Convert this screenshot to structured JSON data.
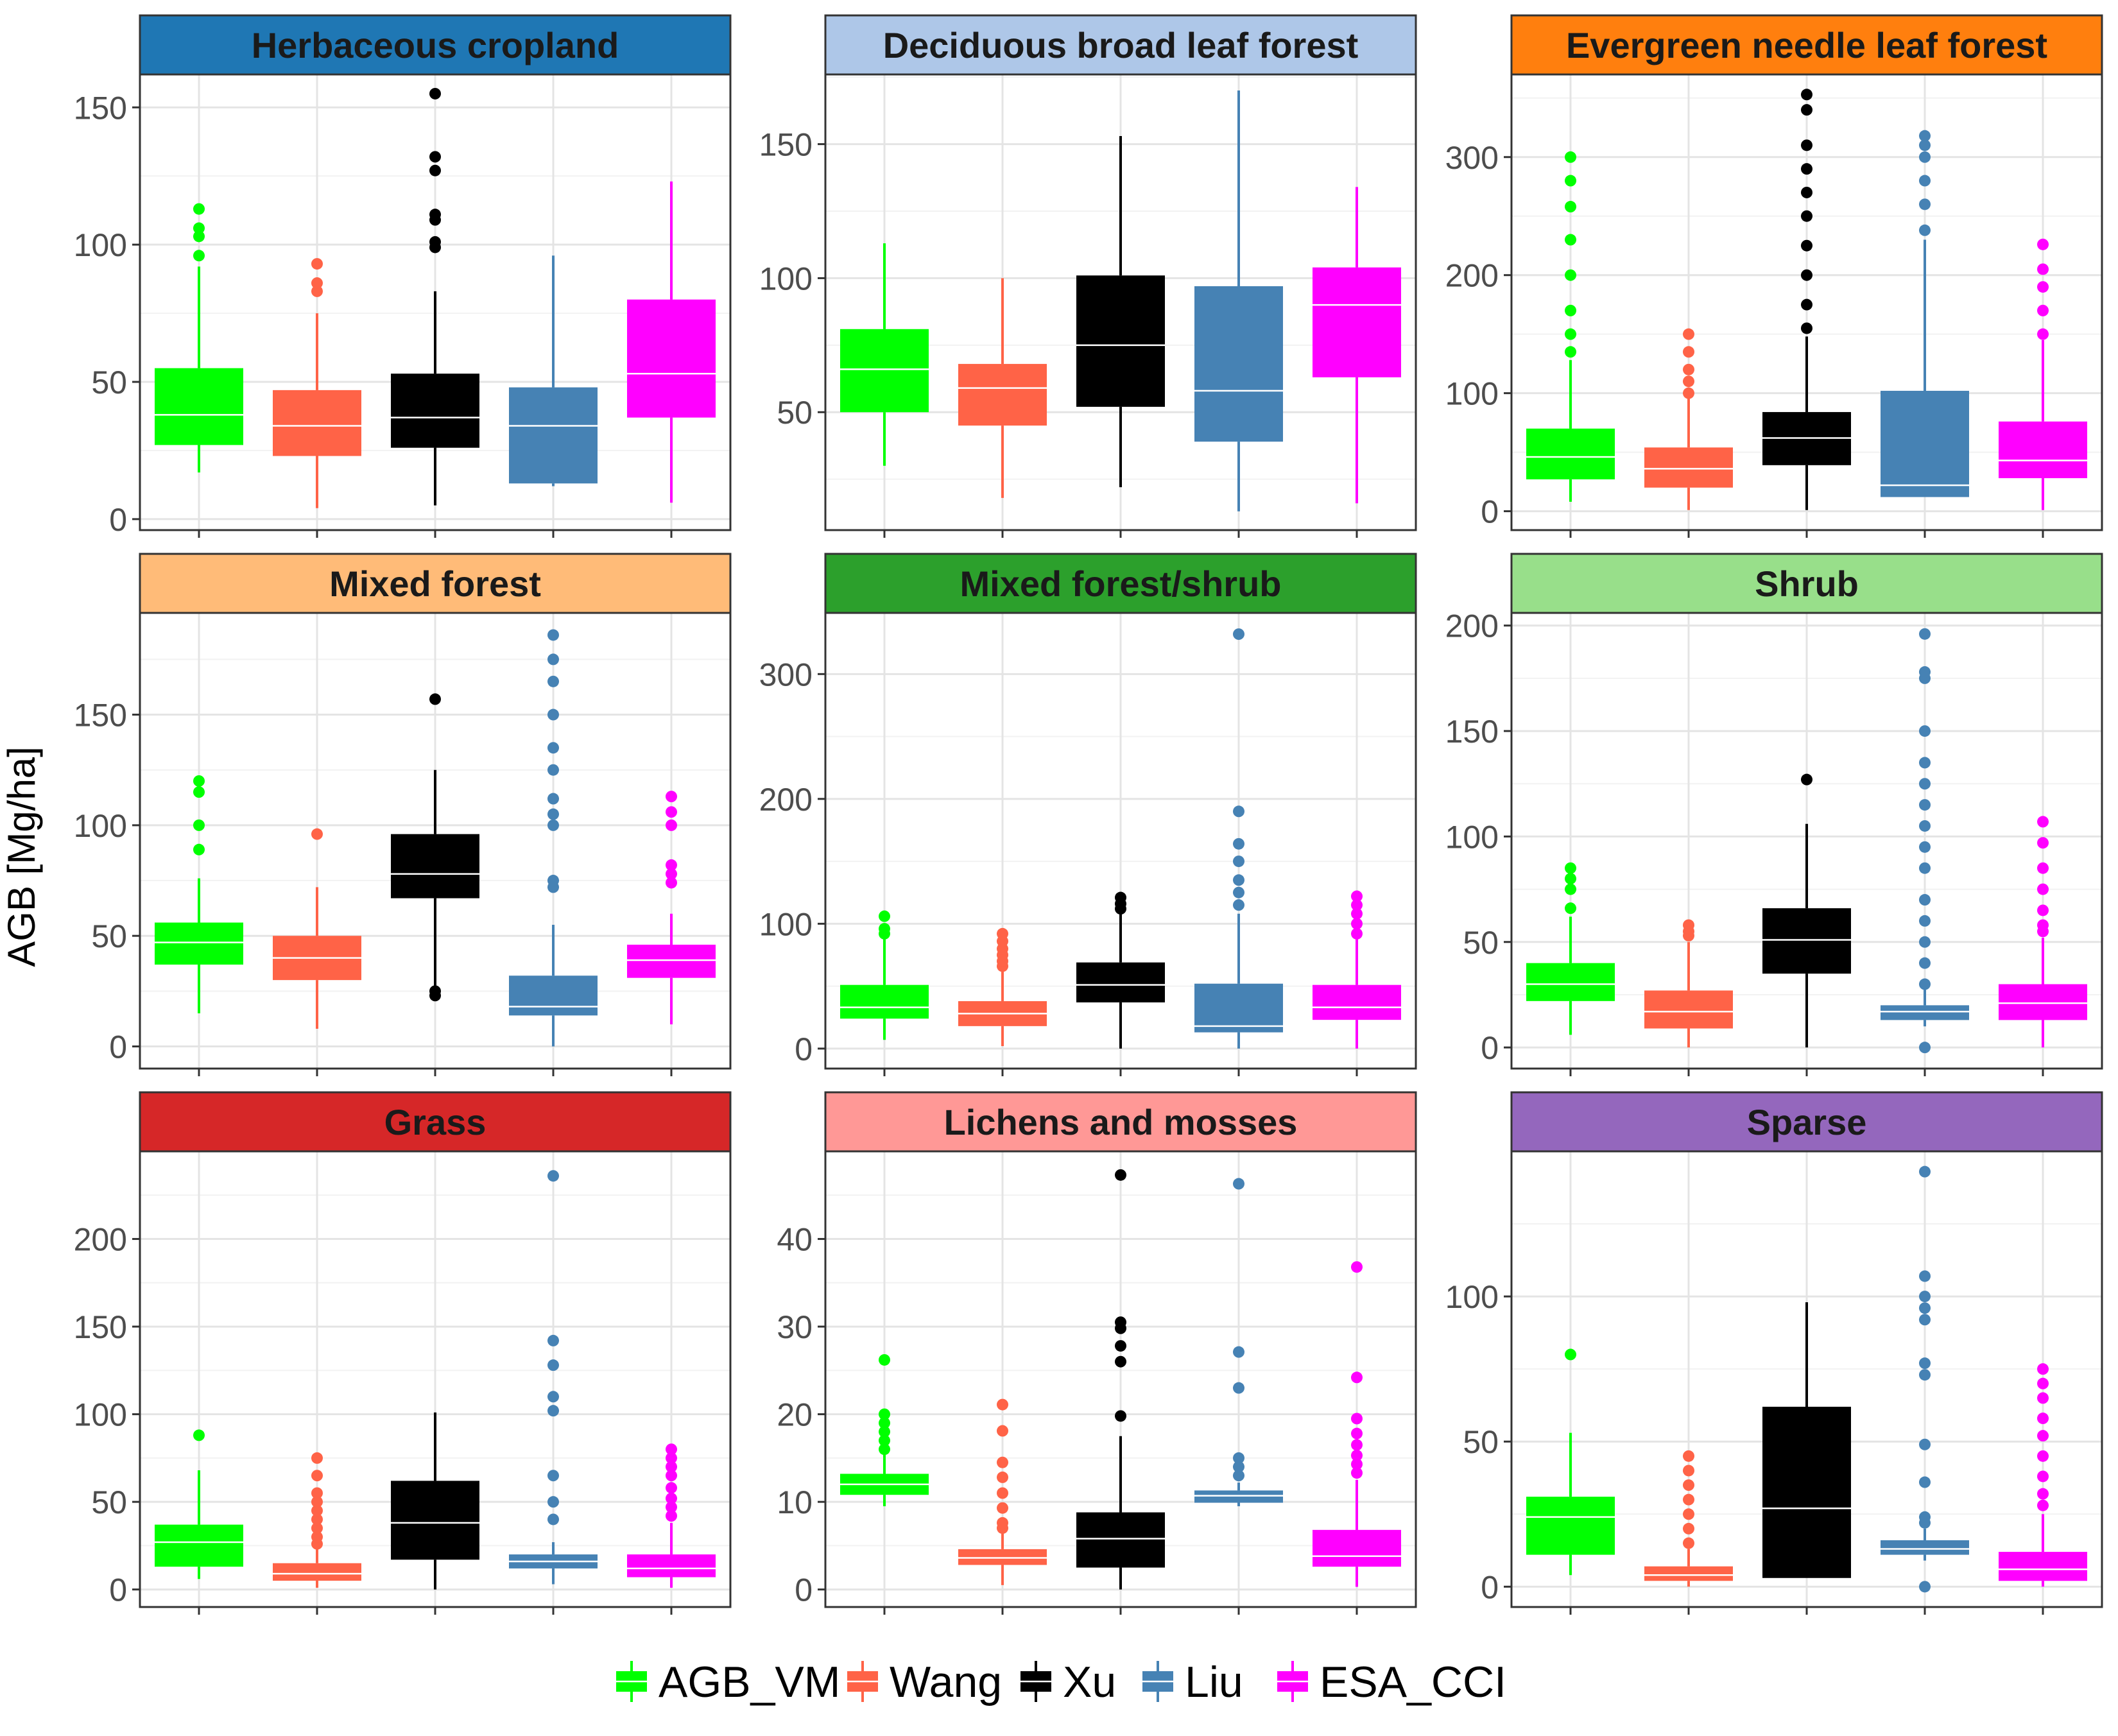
{
  "figure": {
    "ylabel": "AGB [Mg/ha]"
  },
  "legend": {
    "items": [
      {
        "label": "AGB_VM",
        "color": "#00ff00"
      },
      {
        "label": "Wang",
        "color": "#ff6347"
      },
      {
        "label": "Xu",
        "color": "#000000"
      },
      {
        "label": "Liu",
        "color": "#4682b4"
      },
      {
        "label": "ESA_CCI",
        "color": "#ff00ff"
      }
    ]
  },
  "chart_data": [
    {
      "type": "boxplot",
      "title": "Herbaceous cropland",
      "strip_color": "#1f77b4",
      "ylim": [
        -4,
        162
      ],
      "yticks": [
        0,
        50,
        100,
        150
      ],
      "series": [
        {
          "name": "AGB_VM",
          "whisker_low": 17,
          "q1": 27,
          "median": 38,
          "q3": 55,
          "whisker_high": 92,
          "outliers": [
            96,
            103,
            106,
            113
          ]
        },
        {
          "name": "Wang",
          "whisker_low": 4,
          "q1": 23,
          "median": 34,
          "q3": 47,
          "whisker_high": 75,
          "outliers": [
            83,
            86,
            93
          ]
        },
        {
          "name": "Xu",
          "whisker_low": 5,
          "q1": 26,
          "median": 37,
          "q3": 53,
          "whisker_high": 83,
          "outliers": [
            99,
            101,
            109,
            111,
            127,
            132,
            155
          ]
        },
        {
          "name": "Liu",
          "whisker_low": 12,
          "q1": 13,
          "median": 34,
          "q3": 48,
          "whisker_high": 96,
          "outliers": []
        },
        {
          "name": "ESA_CCI",
          "whisker_low": 6,
          "q1": 37,
          "median": 53,
          "q3": 80,
          "whisker_high": 123,
          "outliers": []
        }
      ]
    },
    {
      "type": "boxplot",
      "title": "Deciduous broad leaf forest",
      "strip_color": "#aec7e8",
      "ylim": [
        6,
        176
      ],
      "yticks": [
        50,
        100,
        150
      ],
      "series": [
        {
          "name": "AGB_VM",
          "whisker_low": 30,
          "q1": 50,
          "median": 66,
          "q3": 81,
          "whisker_high": 113,
          "outliers": []
        },
        {
          "name": "Wang",
          "whisker_low": 18,
          "q1": 45,
          "median": 59,
          "q3": 68,
          "whisker_high": 100,
          "outliers": []
        },
        {
          "name": "Xu",
          "whisker_low": 22,
          "q1": 52,
          "median": 75,
          "q3": 101,
          "whisker_high": 153,
          "outliers": []
        },
        {
          "name": "Liu",
          "whisker_low": 13,
          "q1": 39,
          "median": 58,
          "q3": 97,
          "whisker_high": 170,
          "outliers": []
        },
        {
          "name": "ESA_CCI",
          "whisker_low": 16,
          "q1": 63,
          "median": 90,
          "q3": 104,
          "whisker_high": 134,
          "outliers": []
        }
      ]
    },
    {
      "type": "boxplot",
      "title": "Evergreen needle leaf forest",
      "strip_color": "#ff7f0e",
      "ylim": [
        -16,
        370
      ],
      "yticks": [
        0,
        100,
        200,
        300
      ],
      "series": [
        {
          "name": "AGB_VM",
          "whisker_low": 8,
          "q1": 27,
          "median": 46,
          "q3": 70,
          "whisker_high": 128,
          "outliers": [
            135,
            150,
            170,
            200,
            230,
            258,
            280,
            300
          ]
        },
        {
          "name": "Wang",
          "whisker_low": 1,
          "q1": 20,
          "median": 36,
          "q3": 54,
          "whisker_high": 98,
          "outliers": [
            100,
            110,
            120,
            135,
            150
          ]
        },
        {
          "name": "Xu",
          "whisker_low": 1,
          "q1": 39,
          "median": 62,
          "q3": 84,
          "whisker_high": 148,
          "outliers": [
            155,
            175,
            200,
            225,
            250,
            270,
            290,
            310,
            340,
            353
          ]
        },
        {
          "name": "Liu",
          "whisker_low": 12,
          "q1": 12,
          "median": 22,
          "q3": 102,
          "whisker_high": 230,
          "outliers": [
            238,
            260,
            280,
            300,
            310,
            318
          ]
        },
        {
          "name": "ESA_CCI",
          "whisker_low": 1,
          "q1": 28,
          "median": 43,
          "q3": 76,
          "whisker_high": 145,
          "outliers": [
            150,
            170,
            190,
            205,
            226
          ]
        }
      ]
    },
    {
      "type": "boxplot",
      "title": "Mixed forest",
      "strip_color": "#ffbb78",
      "ylim": [
        -10,
        196
      ],
      "yticks": [
        0,
        50,
        100,
        150
      ],
      "series": [
        {
          "name": "AGB_VM",
          "whisker_low": 15,
          "q1": 37,
          "median": 47,
          "q3": 56,
          "whisker_high": 76,
          "outliers": [
            89,
            100,
            115,
            120
          ]
        },
        {
          "name": "Wang",
          "whisker_low": 8,
          "q1": 30,
          "median": 40,
          "q3": 50,
          "whisker_high": 72,
          "outliers": [
            96
          ]
        },
        {
          "name": "Xu",
          "whisker_low": 26,
          "q1": 67,
          "median": 78,
          "q3": 96,
          "whisker_high": 125,
          "outliers": [
            23,
            25,
            157
          ]
        },
        {
          "name": "Liu",
          "whisker_low": 0,
          "q1": 14,
          "median": 18,
          "q3": 32,
          "whisker_high": 55,
          "outliers": [
            72,
            75,
            100,
            105,
            112,
            125,
            135,
            150,
            165,
            175,
            186
          ]
        },
        {
          "name": "ESA_CCI",
          "whisker_low": 10,
          "q1": 31,
          "median": 39,
          "q3": 46,
          "whisker_high": 60,
          "outliers": [
            74,
            78,
            82,
            100,
            106,
            113
          ]
        }
      ]
    },
    {
      "type": "boxplot",
      "title": "Mixed forest/shrub",
      "strip_color": "#2ca02c",
      "ylim": [
        -16,
        349
      ],
      "yticks": [
        0,
        100,
        200,
        300
      ],
      "series": [
        {
          "name": "AGB_VM",
          "whisker_low": 7,
          "q1": 24,
          "median": 33,
          "q3": 51,
          "whisker_high": 88,
          "outliers": [
            92,
            96,
            106
          ]
        },
        {
          "name": "Wang",
          "whisker_low": 2,
          "q1": 18,
          "median": 28,
          "q3": 38,
          "whisker_high": 63,
          "outliers": [
            66,
            70,
            75,
            80,
            86,
            92
          ]
        },
        {
          "name": "Xu",
          "whisker_low": 0,
          "q1": 37,
          "median": 51,
          "q3": 69,
          "whisker_high": 108,
          "outliers": [
            112,
            116,
            121
          ]
        },
        {
          "name": "Liu",
          "whisker_low": 0,
          "q1": 13,
          "median": 18,
          "q3": 52,
          "whisker_high": 108,
          "outliers": [
            115,
            125,
            135,
            150,
            164,
            190,
            332
          ]
        },
        {
          "name": "ESA_CCI",
          "whisker_low": 0,
          "q1": 23,
          "median": 33,
          "q3": 51,
          "whisker_high": 88,
          "outliers": [
            92,
            100,
            108,
            115,
            122
          ]
        }
      ]
    },
    {
      "type": "boxplot",
      "title": "Shrub",
      "strip_color": "#98df8a",
      "ylim": [
        -10,
        206
      ],
      "yticks": [
        0,
        50,
        100,
        150,
        200
      ],
      "series": [
        {
          "name": "AGB_VM",
          "whisker_low": 6,
          "q1": 22,
          "median": 30,
          "q3": 40,
          "whisker_high": 62,
          "outliers": [
            66,
            75,
            80,
            85
          ]
        },
        {
          "name": "Wang",
          "whisker_low": 0,
          "q1": 9,
          "median": 17,
          "q3": 27,
          "whisker_high": 50,
          "outliers": [
            53,
            55,
            58
          ]
        },
        {
          "name": "Xu",
          "whisker_low": 0,
          "q1": 35,
          "median": 51,
          "q3": 66,
          "whisker_high": 106,
          "outliers": [
            127
          ]
        },
        {
          "name": "Liu",
          "whisker_low": 10,
          "q1": 13,
          "median": 17,
          "q3": 20,
          "whisker_high": 28,
          "outliers": [
            0,
            30,
            40,
            50,
            60,
            70,
            85,
            95,
            105,
            115,
            125,
            135,
            150,
            175,
            178,
            196
          ]
        },
        {
          "name": "ESA_CCI",
          "whisker_low": 0,
          "q1": 13,
          "median": 21,
          "q3": 30,
          "whisker_high": 52,
          "outliers": [
            55,
            58,
            65,
            75,
            85,
            97,
            107
          ]
        }
      ]
    },
    {
      "type": "boxplot",
      "title": "Grass",
      "strip_color": "#d62728",
      "ylim": [
        -10,
        250
      ],
      "yticks": [
        0,
        50,
        100,
        150,
        200
      ],
      "series": [
        {
          "name": "AGB_VM",
          "whisker_low": 6,
          "q1": 13,
          "median": 27,
          "q3": 37,
          "whisker_high": 68,
          "outliers": [
            88
          ]
        },
        {
          "name": "Wang",
          "whisker_low": 1,
          "q1": 5,
          "median": 9,
          "q3": 15,
          "whisker_high": 24,
          "outliers": [
            26,
            30,
            35,
            40,
            45,
            50,
            55,
            65,
            75
          ]
        },
        {
          "name": "Xu",
          "whisker_low": 0,
          "q1": 17,
          "median": 38,
          "q3": 62,
          "whisker_high": 101,
          "outliers": []
        },
        {
          "name": "Liu",
          "whisker_low": 3,
          "q1": 12,
          "median": 16,
          "q3": 20,
          "whisker_high": 27,
          "outliers": [
            40,
            50,
            65,
            102,
            110,
            128,
            142,
            236
          ]
        },
        {
          "name": "ESA_CCI",
          "whisker_low": 1,
          "q1": 7,
          "median": 12,
          "q3": 20,
          "whisker_high": 38,
          "outliers": [
            42,
            47,
            52,
            58,
            65,
            70,
            75,
            80
          ]
        }
      ]
    },
    {
      "type": "boxplot",
      "title": "Lichens and mosses",
      "strip_color": "#ff9896",
      "ylim": [
        -2,
        50
      ],
      "yticks": [
        0,
        10,
        20,
        30,
        40
      ],
      "series": [
        {
          "name": "AGB_VM",
          "whisker_low": 9.5,
          "q1": 10.8,
          "median": 12,
          "q3": 13.2,
          "whisker_high": 15.5,
          "outliers": [
            16,
            17,
            18,
            19,
            20,
            26.2
          ]
        },
        {
          "name": "Wang",
          "whisker_low": 0.5,
          "q1": 2.8,
          "median": 3.6,
          "q3": 4.6,
          "whisker_high": 6.5,
          "outliers": [
            7,
            7.6,
            9.3,
            11,
            12.8,
            14.5,
            18.1,
            21.1
          ]
        },
        {
          "name": "Xu",
          "whisker_low": 0,
          "q1": 2.5,
          "median": 5.8,
          "q3": 8.8,
          "whisker_high": 17.5,
          "outliers": [
            19.8,
            26,
            27.8,
            29.8,
            30.5,
            47.3
          ]
        },
        {
          "name": "Liu",
          "whisker_low": 9.5,
          "q1": 9.9,
          "median": 10.7,
          "q3": 11.3,
          "whisker_high": 12.2,
          "outliers": [
            13,
            14,
            15,
            23,
            27.1,
            46.3
          ]
        },
        {
          "name": "ESA_CCI",
          "whisker_low": 0.3,
          "q1": 2.6,
          "median": 3.8,
          "q3": 6.8,
          "whisker_high": 12.5,
          "outliers": [
            13.3,
            14.3,
            15.3,
            16.5,
            17.8,
            19.5,
            24.2,
            36.8
          ]
        }
      ]
    },
    {
      "type": "boxplot",
      "title": "Sparse",
      "strip_color": "#9467bd",
      "ylim": [
        -7,
        150
      ],
      "yticks": [
        0,
        50,
        100
      ],
      "series": [
        {
          "name": "AGB_VM",
          "whisker_low": 4,
          "q1": 11,
          "median": 24,
          "q3": 31,
          "whisker_high": 53,
          "outliers": [
            80
          ]
        },
        {
          "name": "Wang",
          "whisker_low": 0,
          "q1": 2,
          "median": 4,
          "q3": 7,
          "whisker_high": 13,
          "outliers": [
            15,
            20,
            25,
            30,
            35,
            40,
            45
          ]
        },
        {
          "name": "Xu",
          "whisker_low": 3,
          "q1": 3,
          "median": 27,
          "q3": 62,
          "whisker_high": 98,
          "outliers": []
        },
        {
          "name": "Liu",
          "whisker_low": 9,
          "q1": 11,
          "median": 13,
          "q3": 16,
          "whisker_high": 20,
          "outliers": [
            0,
            22,
            24,
            36,
            49,
            73,
            77,
            92,
            96,
            100,
            107,
            143
          ]
        },
        {
          "name": "ESA_CCI",
          "whisker_low": 0,
          "q1": 2,
          "median": 6,
          "q3": 12,
          "whisker_high": 25,
          "outliers": [
            28,
            32,
            38,
            45,
            52,
            58,
            65,
            70,
            75
          ]
        }
      ]
    }
  ]
}
